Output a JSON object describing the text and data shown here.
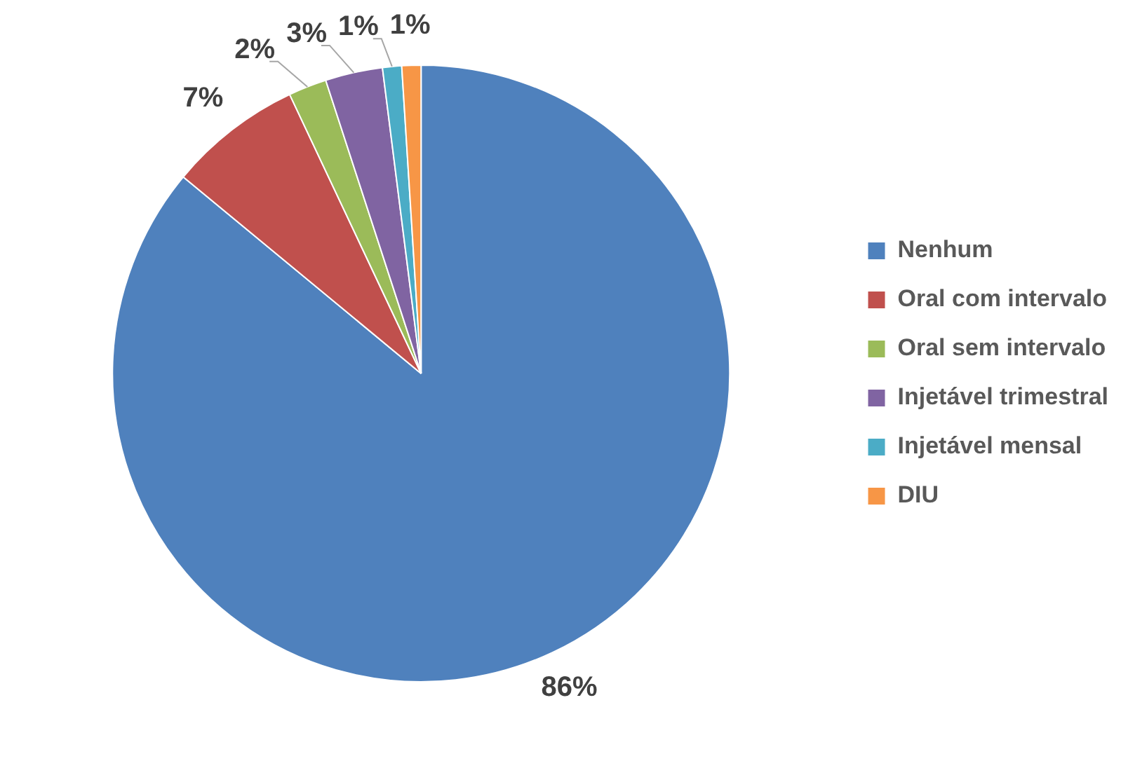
{
  "chart_data": {
    "type": "pie",
    "categories": [
      "Nenhum",
      "Oral com intervalo",
      "Oral sem intervalo",
      "Injetável trimestral",
      "Injetável mensal",
      "DIU"
    ],
    "values": [
      86,
      7,
      2,
      3,
      1,
      1
    ],
    "colors": [
      "#4f81bd",
      "#c0504d",
      "#9bbb59",
      "#8064a2",
      "#4bacc6",
      "#f79646"
    ],
    "value_labels": [
      "86%",
      "7%",
      "2%",
      "3%",
      "1%",
      "1%"
    ],
    "legend": "right"
  }
}
